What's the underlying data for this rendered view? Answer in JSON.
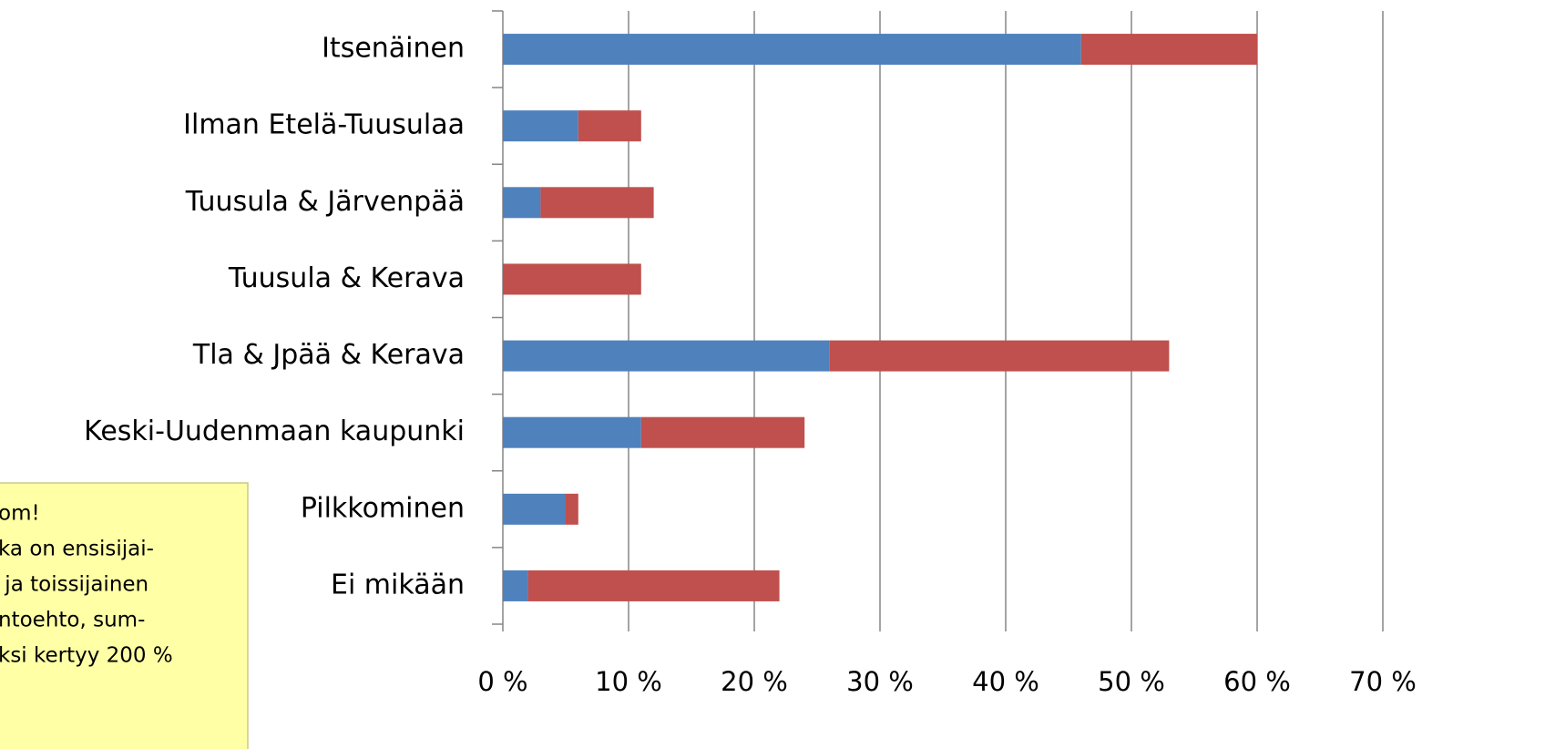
{
  "chart_data": {
    "type": "stacked_barh",
    "categories": [
      "Itsenäinen",
      "Ilman Etelä-Tuusulaa",
      "Tuusula & Järvenpää",
      "Tuusula & Kerava",
      "Tla & Jpää & Kerava",
      "Keski-Uudenmaan kaupunki",
      "Pilkkominen",
      "Ei mikään"
    ],
    "series": [
      {
        "color": "#4f81bd",
        "values": [
          46,
          6,
          3,
          0,
          26,
          11,
          5,
          2
        ]
      },
      {
        "color": "#c0504d",
        "values": [
          14,
          5,
          9,
          11,
          27,
          13,
          1,
          20
        ]
      }
    ],
    "xlim": [
      0,
      70
    ],
    "xticks": [
      {
        "value": 0,
        "label": "0 %"
      },
      {
        "value": 10,
        "label": "10 %"
      },
      {
        "value": 20,
        "label": "20 %"
      },
      {
        "value": 30,
        "label": "30 %"
      },
      {
        "value": 40,
        "label": "40 %"
      },
      {
        "value": 50,
        "label": "50 %"
      },
      {
        "value": 60,
        "label": "60 %"
      },
      {
        "value": 70,
        "label": "70 %"
      }
    ],
    "grid": true,
    "note": [
      "om!",
      "ka on ensisijai-",
      " ja toissijainen",
      "ntoehto, sum-",
      "ksi kertyy 200 %"
    ]
  }
}
